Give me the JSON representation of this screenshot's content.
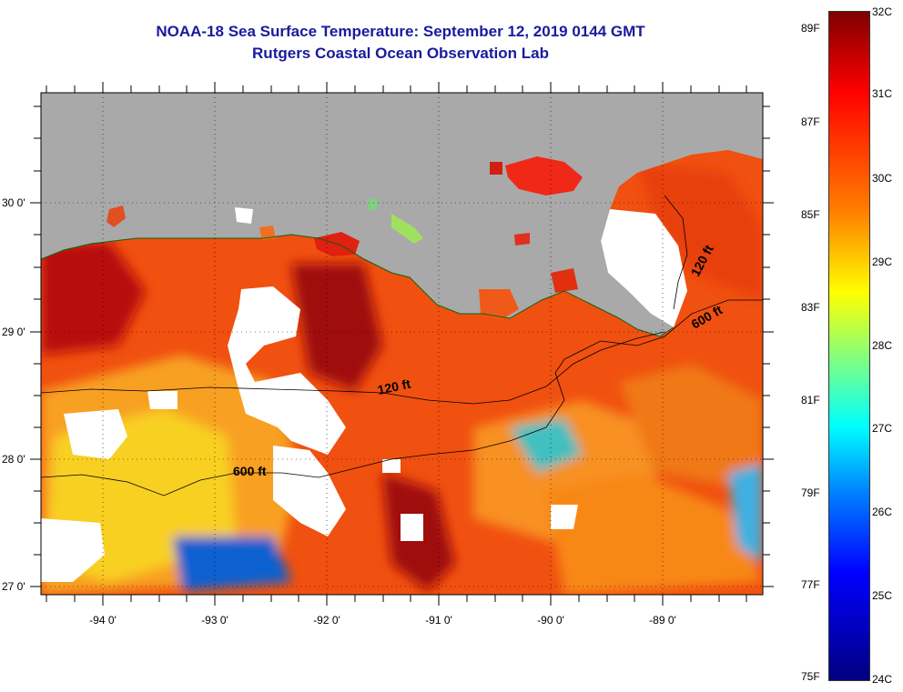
{
  "title": "NOAA-18 Sea Surface Temperature:  September 12, 2019 0144 GMT",
  "subtitle": "Rutgers Coastal Ocean Observation Lab",
  "map": {
    "lon_labels": [
      "-94 0'",
      "-93 0'",
      "-92 0'",
      "-91 0'",
      "-90 0'",
      "-89 0'"
    ],
    "lat_labels": [
      "30 0'",
      "29 0'",
      "28 0'",
      "27 0'"
    ],
    "contour_labels": [
      "120 ft",
      "600 ft",
      "120 ft",
      "600 ft"
    ]
  },
  "colorbar": {
    "fahrenheit_labels": [
      "89F",
      "87F",
      "85F",
      "83F",
      "81F",
      "79F",
      "77F",
      "75F"
    ],
    "celsius_labels": [
      "32C",
      "31C",
      "30C",
      "29C",
      "28C",
      "27C",
      "26C",
      "25C",
      "24C"
    ]
  },
  "colors": {
    "title": "#1a1a9e",
    "land": "#a9a9a9",
    "cloud": "#ffffff",
    "scale": [
      "#00007f",
      "#0000ff",
      "#0080ff",
      "#00ffff",
      "#80ff80",
      "#ffff00",
      "#ff8000",
      "#ff0000",
      "#7f0000"
    ]
  }
}
